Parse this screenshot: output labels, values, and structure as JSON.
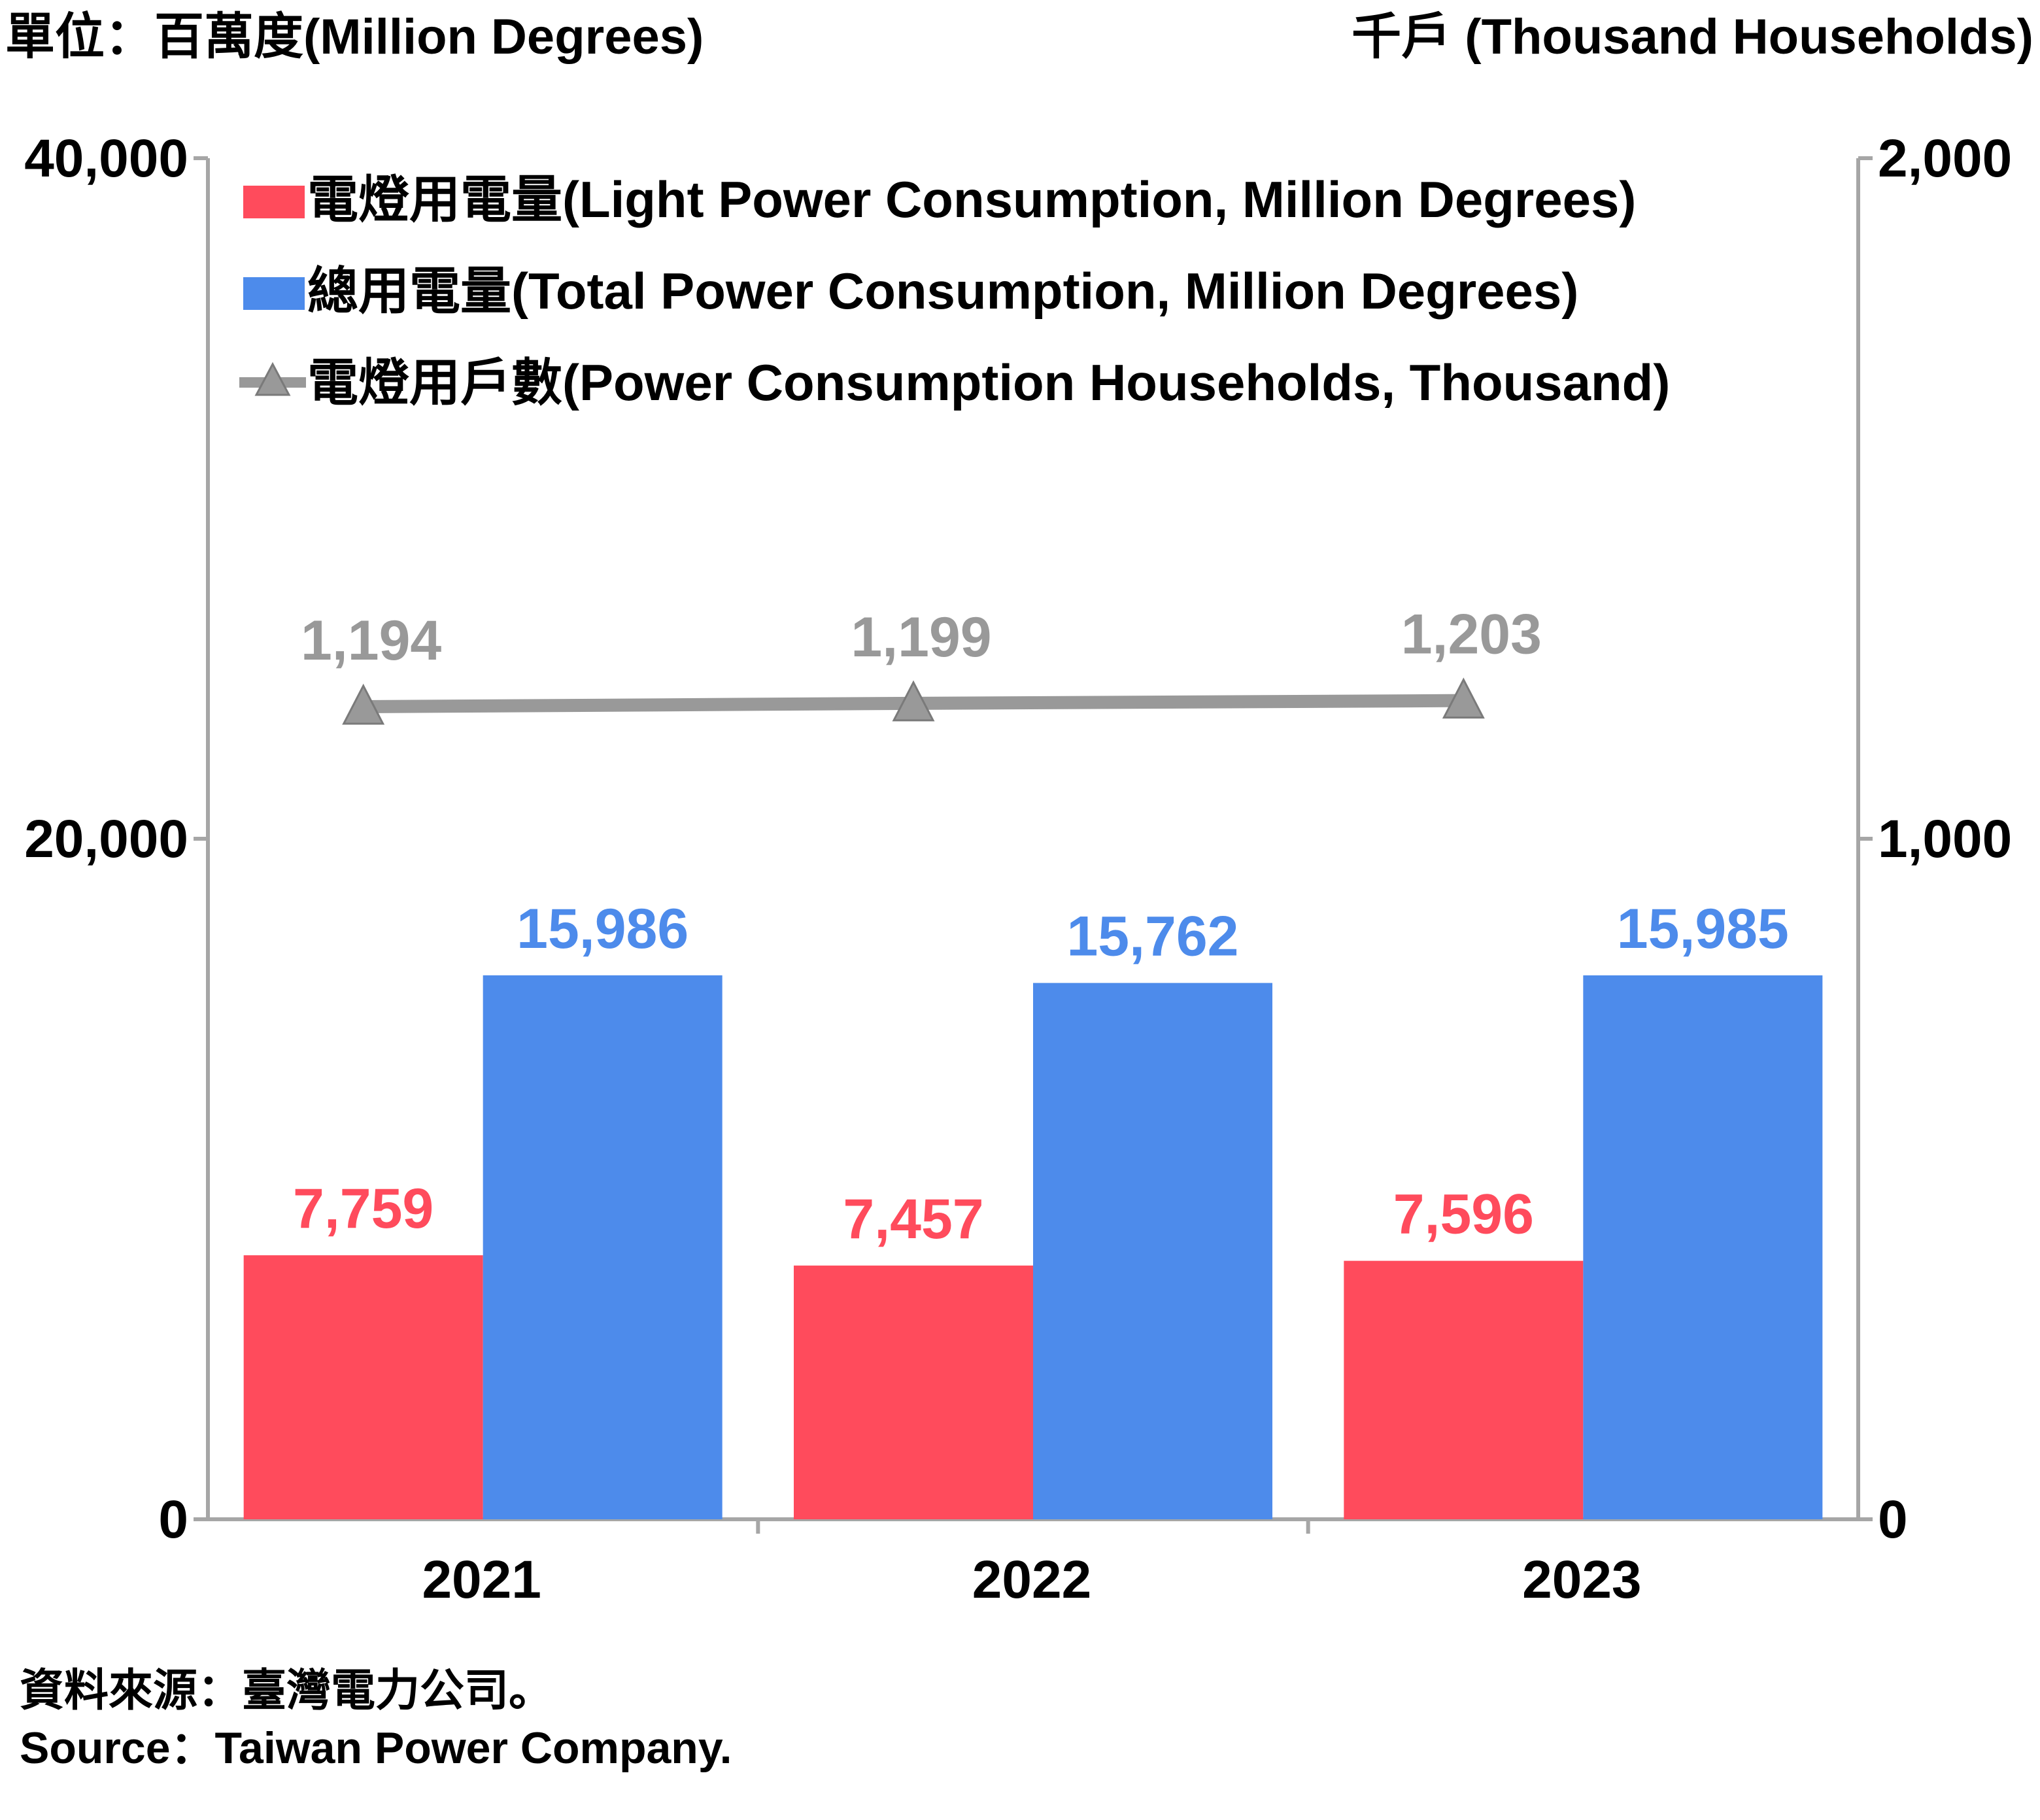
{
  "chart_data": {
    "type": "bar",
    "left_axis_unit": "單位：百萬度(Million Degrees)",
    "right_axis_unit": "千戶 (Thousand Households)",
    "categories": [
      "2021",
      "2022",
      "2023"
    ],
    "left_ticks": [
      "0",
      "20,000",
      "40,000"
    ],
    "right_ticks": [
      "0",
      "1,000",
      "2,000"
    ],
    "ylim_left": [
      0,
      40000
    ],
    "ylim_right": [
      0,
      2000
    ],
    "series": [
      {
        "name": "電燈用電量(Light Power Consumption, Million Degrees)",
        "kind": "bar",
        "axis": "left",
        "color": "#ff4b5c",
        "values": [
          7759,
          7457,
          7596
        ],
        "labels": [
          "7,759",
          "7,457",
          "7,596"
        ]
      },
      {
        "name": "總用電量(Total Power Consumption, Million Degrees)",
        "kind": "bar",
        "axis": "left",
        "color": "#4d8beb",
        "values": [
          15986,
          15762,
          15985
        ],
        "labels": [
          "15,986",
          "15,762",
          "15,985"
        ]
      },
      {
        "name": "電燈用戶數(Power Consumption Households, Thousand)",
        "kind": "line",
        "axis": "right",
        "color": "#999999",
        "marker": "triangle",
        "values": [
          1194,
          1199,
          1203
        ],
        "labels": [
          "1,194",
          "1,199",
          "1,203"
        ]
      }
    ],
    "legend_position": "top-left",
    "grid": false
  },
  "source": {
    "zh": "資料來源：臺灣電力公司。",
    "en": "Source：Taiwan Power Company."
  }
}
